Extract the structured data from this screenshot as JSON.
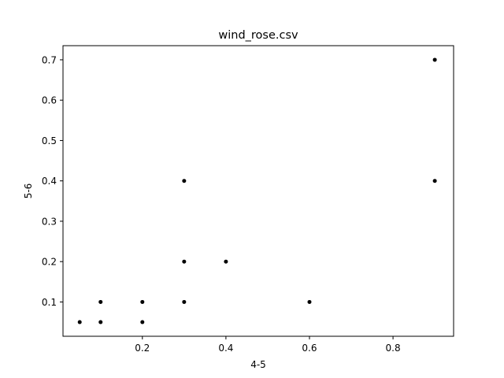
{
  "chart_data": {
    "type": "scatter",
    "title": "wind_rose.csv",
    "xlabel": "4-5",
    "ylabel": "5-6",
    "xlim": [
      0.01,
      0.945
    ],
    "ylim": [
      0.015,
      0.735
    ],
    "xticks": [
      0.2,
      0.4,
      0.6,
      0.8
    ],
    "xtick_labels": [
      "0.2",
      "0.4",
      "0.6",
      "0.8"
    ],
    "yticks": [
      0.1,
      0.2,
      0.3,
      0.4,
      0.5,
      0.6,
      0.7
    ],
    "ytick_labels": [
      "0.1",
      "0.2",
      "0.3",
      "0.4",
      "0.5",
      "0.6",
      "0.7"
    ],
    "grid": false,
    "marker_color": "#000000",
    "points": [
      {
        "x": 0.05,
        "y": 0.05
      },
      {
        "x": 0.1,
        "y": 0.05
      },
      {
        "x": 0.1,
        "y": 0.1
      },
      {
        "x": 0.2,
        "y": 0.05
      },
      {
        "x": 0.2,
        "y": 0.1
      },
      {
        "x": 0.3,
        "y": 0.1
      },
      {
        "x": 0.3,
        "y": 0.2
      },
      {
        "x": 0.3,
        "y": 0.4
      },
      {
        "x": 0.4,
        "y": 0.2
      },
      {
        "x": 0.6,
        "y": 0.1
      },
      {
        "x": 0.9,
        "y": 0.4
      },
      {
        "x": 0.9,
        "y": 0.7
      }
    ]
  }
}
